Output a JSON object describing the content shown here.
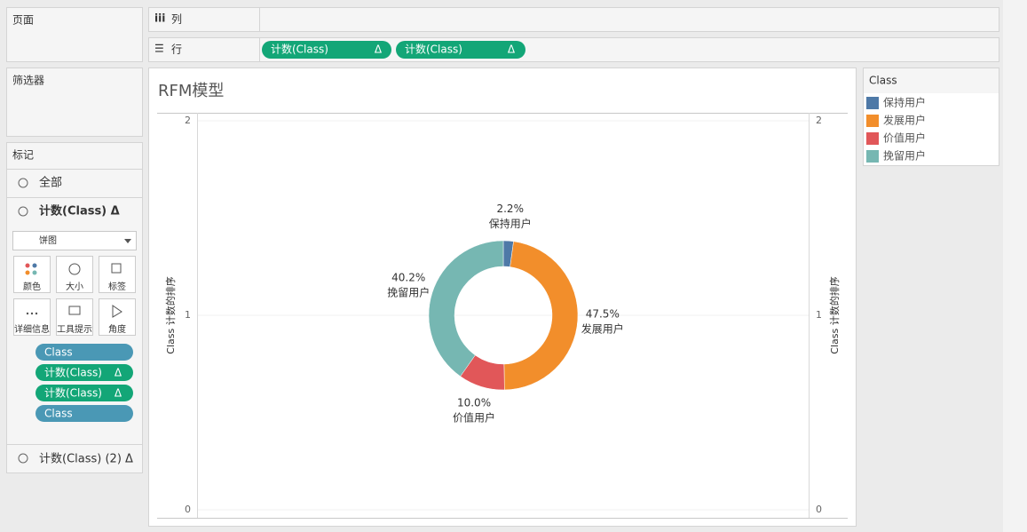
{
  "shelves": {
    "pages": "页面",
    "filters": "筛选器",
    "columns": {
      "label": "列"
    },
    "rows": {
      "label": "行",
      "pills": [
        {
          "text": "计数(Class)",
          "delta": "Δ"
        },
        {
          "text": "计数(Class)",
          "delta": "Δ"
        }
      ]
    }
  },
  "marks": {
    "title": "标记",
    "all": "全部",
    "measure_1": "计数(Class) Δ",
    "mark_type": "饼图",
    "buttons": [
      "颜色",
      "大小",
      "标签",
      "详细信息",
      "工具提示",
      "角度"
    ],
    "pills": [
      {
        "text": "Class"
      },
      {
        "text": "计数(Class)",
        "delta": "Δ"
      },
      {
        "text": "计数(Class)",
        "delta": "Δ"
      },
      {
        "text": "Class"
      }
    ],
    "measure_2": "计数(Class) (2) Δ"
  },
  "chart_data": {
    "type": "pie",
    "title": "RFM模型",
    "categories": [
      "保持用户",
      "发展用户",
      "价值用户",
      "挽留用户"
    ],
    "values": [
      2.2,
      47.5,
      10.0,
      40.2
    ],
    "value_labels": [
      "2.2%",
      "47.5%",
      "10.0%",
      "40.2%"
    ],
    "colors": [
      "#4e79a7",
      "#f28e2b",
      "#e15759",
      "#76b7b2"
    ],
    "donut": true,
    "ylim": [
      0,
      2
    ],
    "yticks": [
      0,
      1,
      2
    ],
    "y_axis_title": "Class 计数的排序",
    "y2lim": [
      0,
      2
    ],
    "y2ticks": [
      0,
      1,
      2
    ],
    "y2_axis_title": "Class 计数的排序",
    "legend": {
      "title": "Class"
    }
  }
}
